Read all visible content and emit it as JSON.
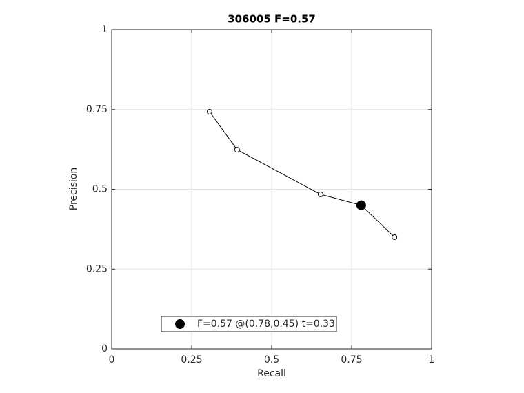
{
  "chart_data": {
    "type": "line",
    "title": "306005 F=0.57",
    "x_label": "Recall",
    "y_label": "Precision",
    "series": [
      {
        "color": "#000000",
        "filled": false,
        "x": [
          0.306,
          0.392,
          0.653,
          0.78,
          0.884
        ],
        "values": [
          0.743,
          0.624,
          0.484,
          0.45,
          0.35
        ]
      },
      {
        "name": "F=0.57 @(0.78,0.45) t=0.33",
        "color": "#000000",
        "filled": true,
        "x": [
          0.78
        ],
        "values": [
          0.45
        ]
      }
    ],
    "xlim": [
      0,
      1
    ],
    "ylim": [
      0,
      1
    ],
    "xticks": [
      0,
      0.25,
      0.5,
      0.75,
      1
    ],
    "yticks": [
      0,
      0.25,
      0.5,
      0.75,
      1
    ],
    "grid": true,
    "legend": "lower-left"
  }
}
